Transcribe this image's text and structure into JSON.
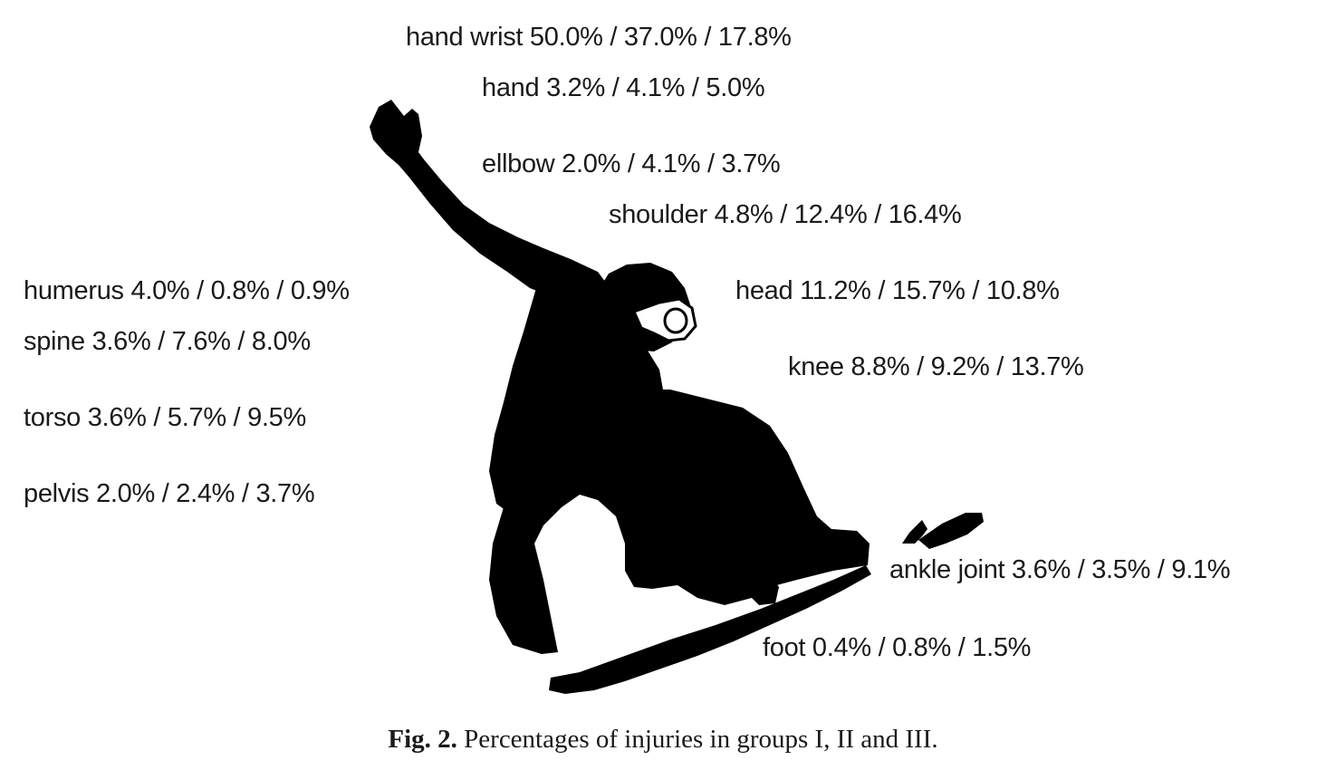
{
  "labels": {
    "hand_wrist": "hand wrist 50.0% / 37.0% / 17.8%",
    "hand": "hand 3.2% / 4.1% / 5.0%",
    "ellbow": "ellbow 2.0% / 4.1% / 3.7%",
    "shoulder": "shoulder 4.8% / 12.4% / 16.4%",
    "humerus": "humerus 4.0% / 0.8% / 0.9%",
    "head": "head 11.2% / 15.7% / 10.8%",
    "spine": "spine 3.6% / 7.6% / 8.0%",
    "knee": "knee 8.8% / 9.2% / 13.7%",
    "torso": "torso 3.6% / 5.7% / 9.5%",
    "pelvis": "pelvis 2.0% / 2.4% / 3.7%",
    "ankle_joint": "ankle joint 3.6% / 3.5% / 9.1%",
    "foot": "foot 0.4% / 0.8% / 1.5%"
  },
  "caption": {
    "prefix": "Fig. 2.",
    "text": " Percentages of injuries in groups I, II and III."
  },
  "colors": {
    "silhouette": "#000000",
    "text": "#1a1a1a",
    "background": "#ffffff"
  }
}
